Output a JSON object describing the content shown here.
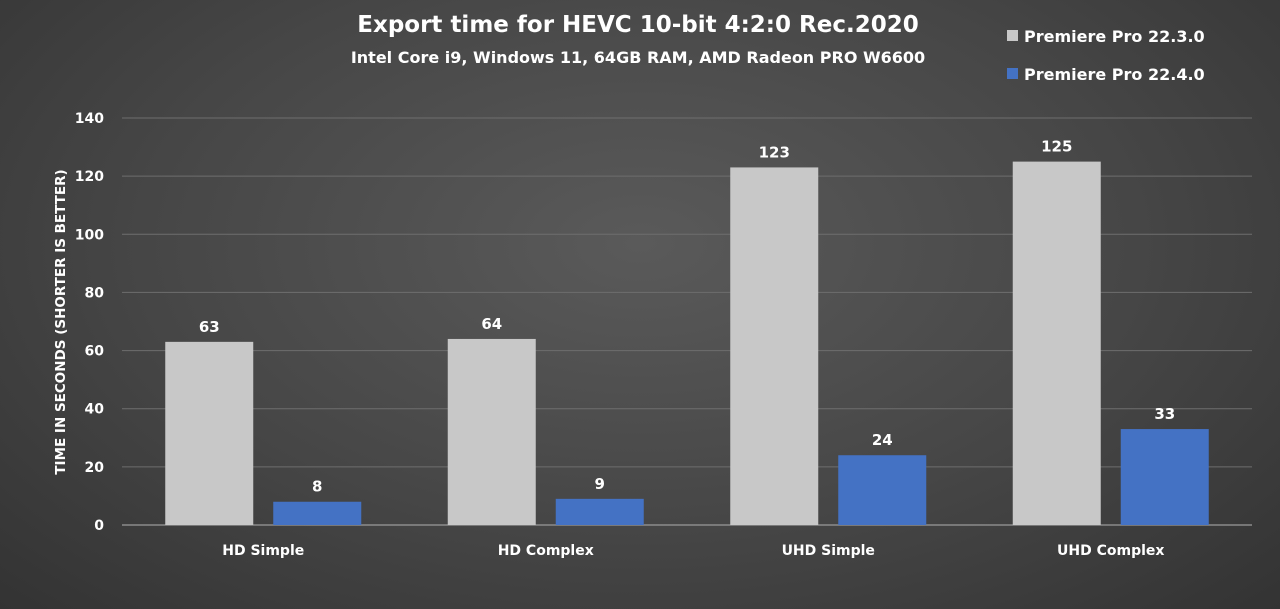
{
  "chart_data": {
    "type": "bar",
    "title": "Export time for HEVC 10-bit 4:2:0 Rec.2020",
    "subtitle": "Intel Core i9,  Windows 11, 64GB RAM, AMD Radeon PRO W6600",
    "xlabel": "",
    "ylabel": "TIME IN SECONDS (SHORTER IS BETTER)",
    "ylim": [
      0,
      140
    ],
    "yticks": [
      0,
      20,
      40,
      60,
      80,
      100,
      120,
      140
    ],
    "grid": true,
    "legend_position": "top-right",
    "categories": [
      "HD Simple",
      "HD Complex",
      "UHD Simple",
      "UHD Complex"
    ],
    "series": [
      {
        "name": "Premiere Pro 22.3.0",
        "color": "#c8c8c8",
        "values": [
          63,
          64,
          123,
          125
        ]
      },
      {
        "name": "Premiere Pro 22.4.0",
        "color": "#4472c4",
        "values": [
          8,
          9,
          24,
          33
        ]
      }
    ]
  }
}
